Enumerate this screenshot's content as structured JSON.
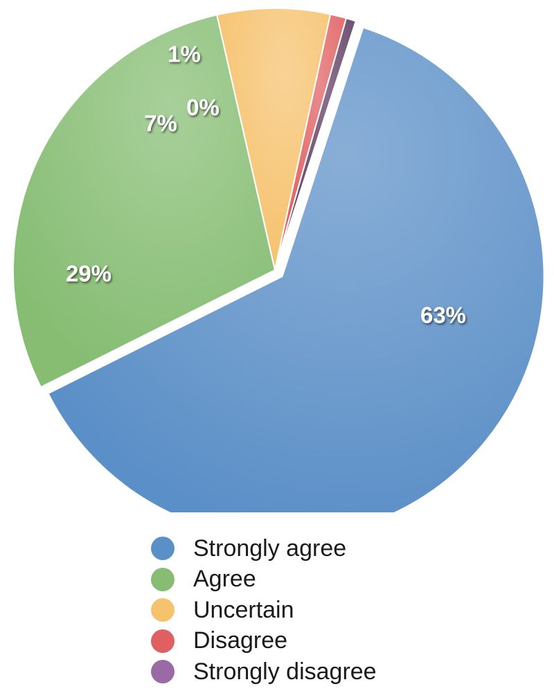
{
  "chart_data": {
    "type": "pie",
    "title": "",
    "slices": [
      {
        "label": "Strongly agree",
        "value": 63,
        "display": "63%",
        "color": "#5b8fc7",
        "exploded": true
      },
      {
        "label": "Agree",
        "value": 29,
        "display": "29%",
        "color": "#86bd73"
      },
      {
        "label": "Uncertain",
        "value": 7,
        "display": "7%",
        "color": "#f6c26e"
      },
      {
        "label": "Disagree",
        "value": 1,
        "display": "1%",
        "color": "#e05f60"
      },
      {
        "label": "Strongly disagree",
        "value": 0,
        "display": "0%",
        "color": "#5f3d62",
        "legend_color": "#9a6aa6"
      }
    ],
    "legend_position": "bottom"
  }
}
